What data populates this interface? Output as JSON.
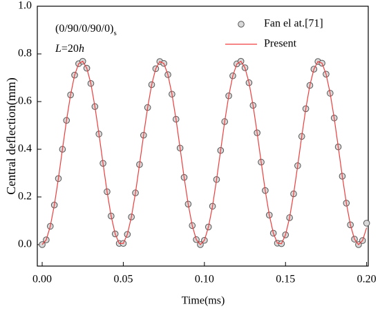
{
  "chart_data": {
    "type": "line",
    "xlabel": "Time(ms)",
    "ylabel": "Central deflection(mm)",
    "annotations": [
      {
        "text": "(0/90/0/90/0)",
        "subscript": "s"
      },
      {
        "parts": [
          "L",
          "=20",
          "h"
        ]
      }
    ],
    "x": [
      0,
      0.0025,
      0.005,
      0.0075,
      0.01,
      0.0125,
      0.015,
      0.0175,
      0.02,
      0.0225,
      0.025,
      0.0275,
      0.03,
      0.0325,
      0.035,
      0.0375,
      0.04,
      0.0425,
      0.045,
      0.0475,
      0.05,
      0.0525,
      0.055,
      0.0575,
      0.06,
      0.0625,
      0.065,
      0.0675,
      0.07,
      0.0725,
      0.075,
      0.0775,
      0.08,
      0.0825,
      0.085,
      0.0875,
      0.09,
      0.0925,
      0.095,
      0.0975,
      0.1,
      0.1025,
      0.105,
      0.1075,
      0.11,
      0.1125,
      0.115,
      0.1175,
      0.12,
      0.1225,
      0.125,
      0.1275,
      0.13,
      0.1325,
      0.135,
      0.1375,
      0.14,
      0.1425,
      0.145,
      0.1475,
      0.15,
      0.1525,
      0.155,
      0.1575,
      0.16,
      0.1625,
      0.165,
      0.1675,
      0.17,
      0.1725,
      0.175,
      0.1775,
      0.18,
      0.1825,
      0.185,
      0.1875,
      0.19,
      0.1925,
      0.195,
      0.1975,
      0.2
    ],
    "series": [
      {
        "name": "Fan el at.[71]",
        "kind": "scatter",
        "color": "#555555",
        "fill": "#d9d9d9",
        "values": [
          0,
          0.02,
          0.077,
          0.166,
          0.277,
          0.4,
          0.521,
          0.628,
          0.711,
          0.759,
          0.769,
          0.74,
          0.676,
          0.579,
          0.464,
          0.341,
          0.222,
          0.12,
          0.045,
          0.005,
          0.005,
          0.043,
          0.116,
          0.217,
          0.336,
          0.459,
          0.575,
          0.671,
          0.738,
          0.768,
          0.76,
          0.713,
          0.631,
          0.526,
          0.405,
          0.282,
          0.17,
          0.08,
          0.021,
          0,
          0.018,
          0.074,
          0.161,
          0.273,
          0.395,
          0.516,
          0.624,
          0.708,
          0.758,
          0.769,
          0.742,
          0.679,
          0.584,
          0.469,
          0.346,
          0.227,
          0.124,
          0.048,
          0.006,
          0.004,
          0.041,
          0.113,
          0.213,
          0.331,
          0.454,
          0.57,
          0.668,
          0.736,
          0.768,
          0.761,
          0.715,
          0.635,
          0.531,
          0.41,
          0.287,
          0.174,
          0.083,
          0.023,
          0,
          0.017,
          0.09
        ]
      },
      {
        "name": "Present",
        "kind": "line",
        "color": "#f03c3c",
        "values": [
          0,
          0.02,
          0.077,
          0.166,
          0.277,
          0.4,
          0.521,
          0.628,
          0.711,
          0.759,
          0.769,
          0.74,
          0.676,
          0.579,
          0.464,
          0.341,
          0.222,
          0.12,
          0.045,
          0.005,
          0.005,
          0.043,
          0.116,
          0.217,
          0.336,
          0.459,
          0.575,
          0.671,
          0.738,
          0.768,
          0.76,
          0.713,
          0.631,
          0.526,
          0.405,
          0.282,
          0.17,
          0.08,
          0.021,
          0,
          0.018,
          0.074,
          0.161,
          0.273,
          0.395,
          0.516,
          0.624,
          0.708,
          0.758,
          0.769,
          0.742,
          0.679,
          0.584,
          0.469,
          0.346,
          0.227,
          0.124,
          0.048,
          0.006,
          0.004,
          0.041,
          0.113,
          0.213,
          0.331,
          0.454,
          0.57,
          0.668,
          0.736,
          0.768,
          0.761,
          0.715,
          0.635,
          0.531,
          0.41,
          0.287,
          0.174,
          0.083,
          0.023,
          0,
          0.017,
          0.071
        ]
      }
    ],
    "xlim": [
      -0.003,
      0.201
    ],
    "ylim": [
      -0.09,
      1.0
    ],
    "xticks": [
      {
        "value": 0,
        "label": "0.00"
      },
      0.05,
      {
        "value": 0.1,
        "label": "0.10"
      },
      0.15,
      {
        "value": 0.2,
        "label": "0.20"
      }
    ],
    "yticks": [
      {
        "value": 0,
        "label": "0.0"
      },
      0.2,
      0.4,
      0.6,
      0.8,
      {
        "value": 1,
        "label": "1.0"
      }
    ],
    "legend": "upper right",
    "grid": false
  }
}
